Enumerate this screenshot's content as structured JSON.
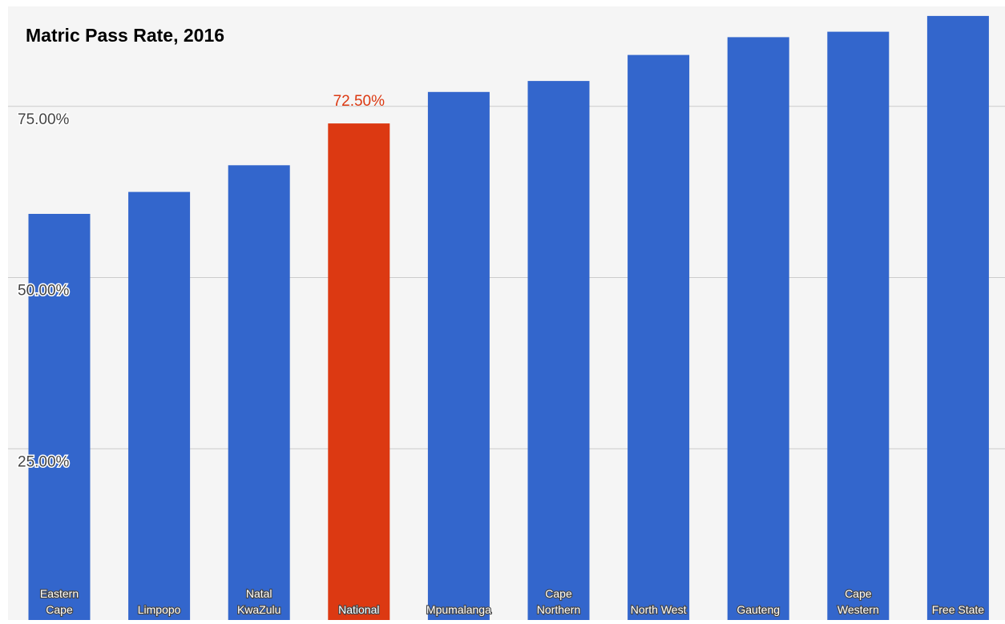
{
  "chart_data": {
    "type": "bar",
    "title": "Matric Pass Rate, 2016",
    "xlabel": "",
    "ylabel": "",
    "categories": [
      [
        "Eastern",
        "Cape"
      ],
      [
        "Limpopo"
      ],
      [
        "Natal",
        "KwaZulu"
      ],
      [
        "National"
      ],
      [
        "Mpumalanga"
      ],
      [
        "Cape",
        "Northern"
      ],
      [
        "North West"
      ],
      [
        "Gauteng"
      ],
      [
        "Cape",
        "Western"
      ],
      [
        "Free State"
      ]
    ],
    "values": [
      59.3,
      62.5,
      66.4,
      72.5,
      77.1,
      78.7,
      82.5,
      85.1,
      85.9,
      88.2
    ],
    "highlight_index": 3,
    "highlight_label": "72.50%",
    "ylim": [
      0,
      90
    ],
    "yticks": [
      25,
      50,
      75
    ],
    "ytick_labels": [
      "25.00%",
      "50.00%",
      "75.00%"
    ],
    "grid": true,
    "legend": "none",
    "colors": {
      "bar": "#3366cc",
      "highlight": "#dc3912",
      "plot_background": "#f5f5f5",
      "gridline": "#cccccc",
      "title": "#000000",
      "tick_label": "#444444",
      "bar_label": "#ffffff"
    }
  }
}
